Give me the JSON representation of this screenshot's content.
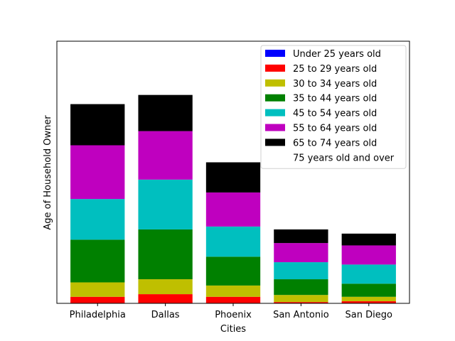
{
  "chart_data": {
    "type": "bar",
    "stacked": true,
    "categories": [
      "Philadelphia",
      "Dallas",
      "Phoenix",
      "San Antonio",
      "San Diego"
    ],
    "xlabel": "Cities",
    "ylabel": "Age of Household Owner",
    "ylim": [
      0,
      1000
    ],
    "yticks_visible": false,
    "legend_position": "top-right",
    "series": [
      {
        "name": "Under 25 years old",
        "color": "#0000ff",
        "values": [
          0,
          0,
          0,
          0,
          0
        ]
      },
      {
        "name": "25 to 29 years old",
        "color": "#ff0000",
        "values": [
          25,
          35,
          25,
          5,
          8
        ]
      },
      {
        "name": "30 to 34 years old",
        "color": "#bfbf00",
        "values": [
          55,
          57,
          43,
          27,
          17
        ]
      },
      {
        "name": "35 to 44 years old",
        "color": "#008000",
        "values": [
          163,
          190,
          110,
          60,
          50
        ]
      },
      {
        "name": "45 to 54 years old",
        "color": "#00bfbf",
        "values": [
          155,
          190,
          115,
          65,
          73
        ]
      },
      {
        "name": "55 to 64 years old",
        "color": "#bf00bf",
        "values": [
          205,
          185,
          130,
          73,
          73
        ]
      },
      {
        "name": "65 to 74 years old",
        "color": "#000000",
        "values": [
          157,
          138,
          115,
          52,
          45
        ]
      },
      {
        "name": "75 years old and over",
        "color": "#ffffff",
        "values": [
          0,
          0,
          0,
          0,
          0
        ]
      }
    ]
  }
}
